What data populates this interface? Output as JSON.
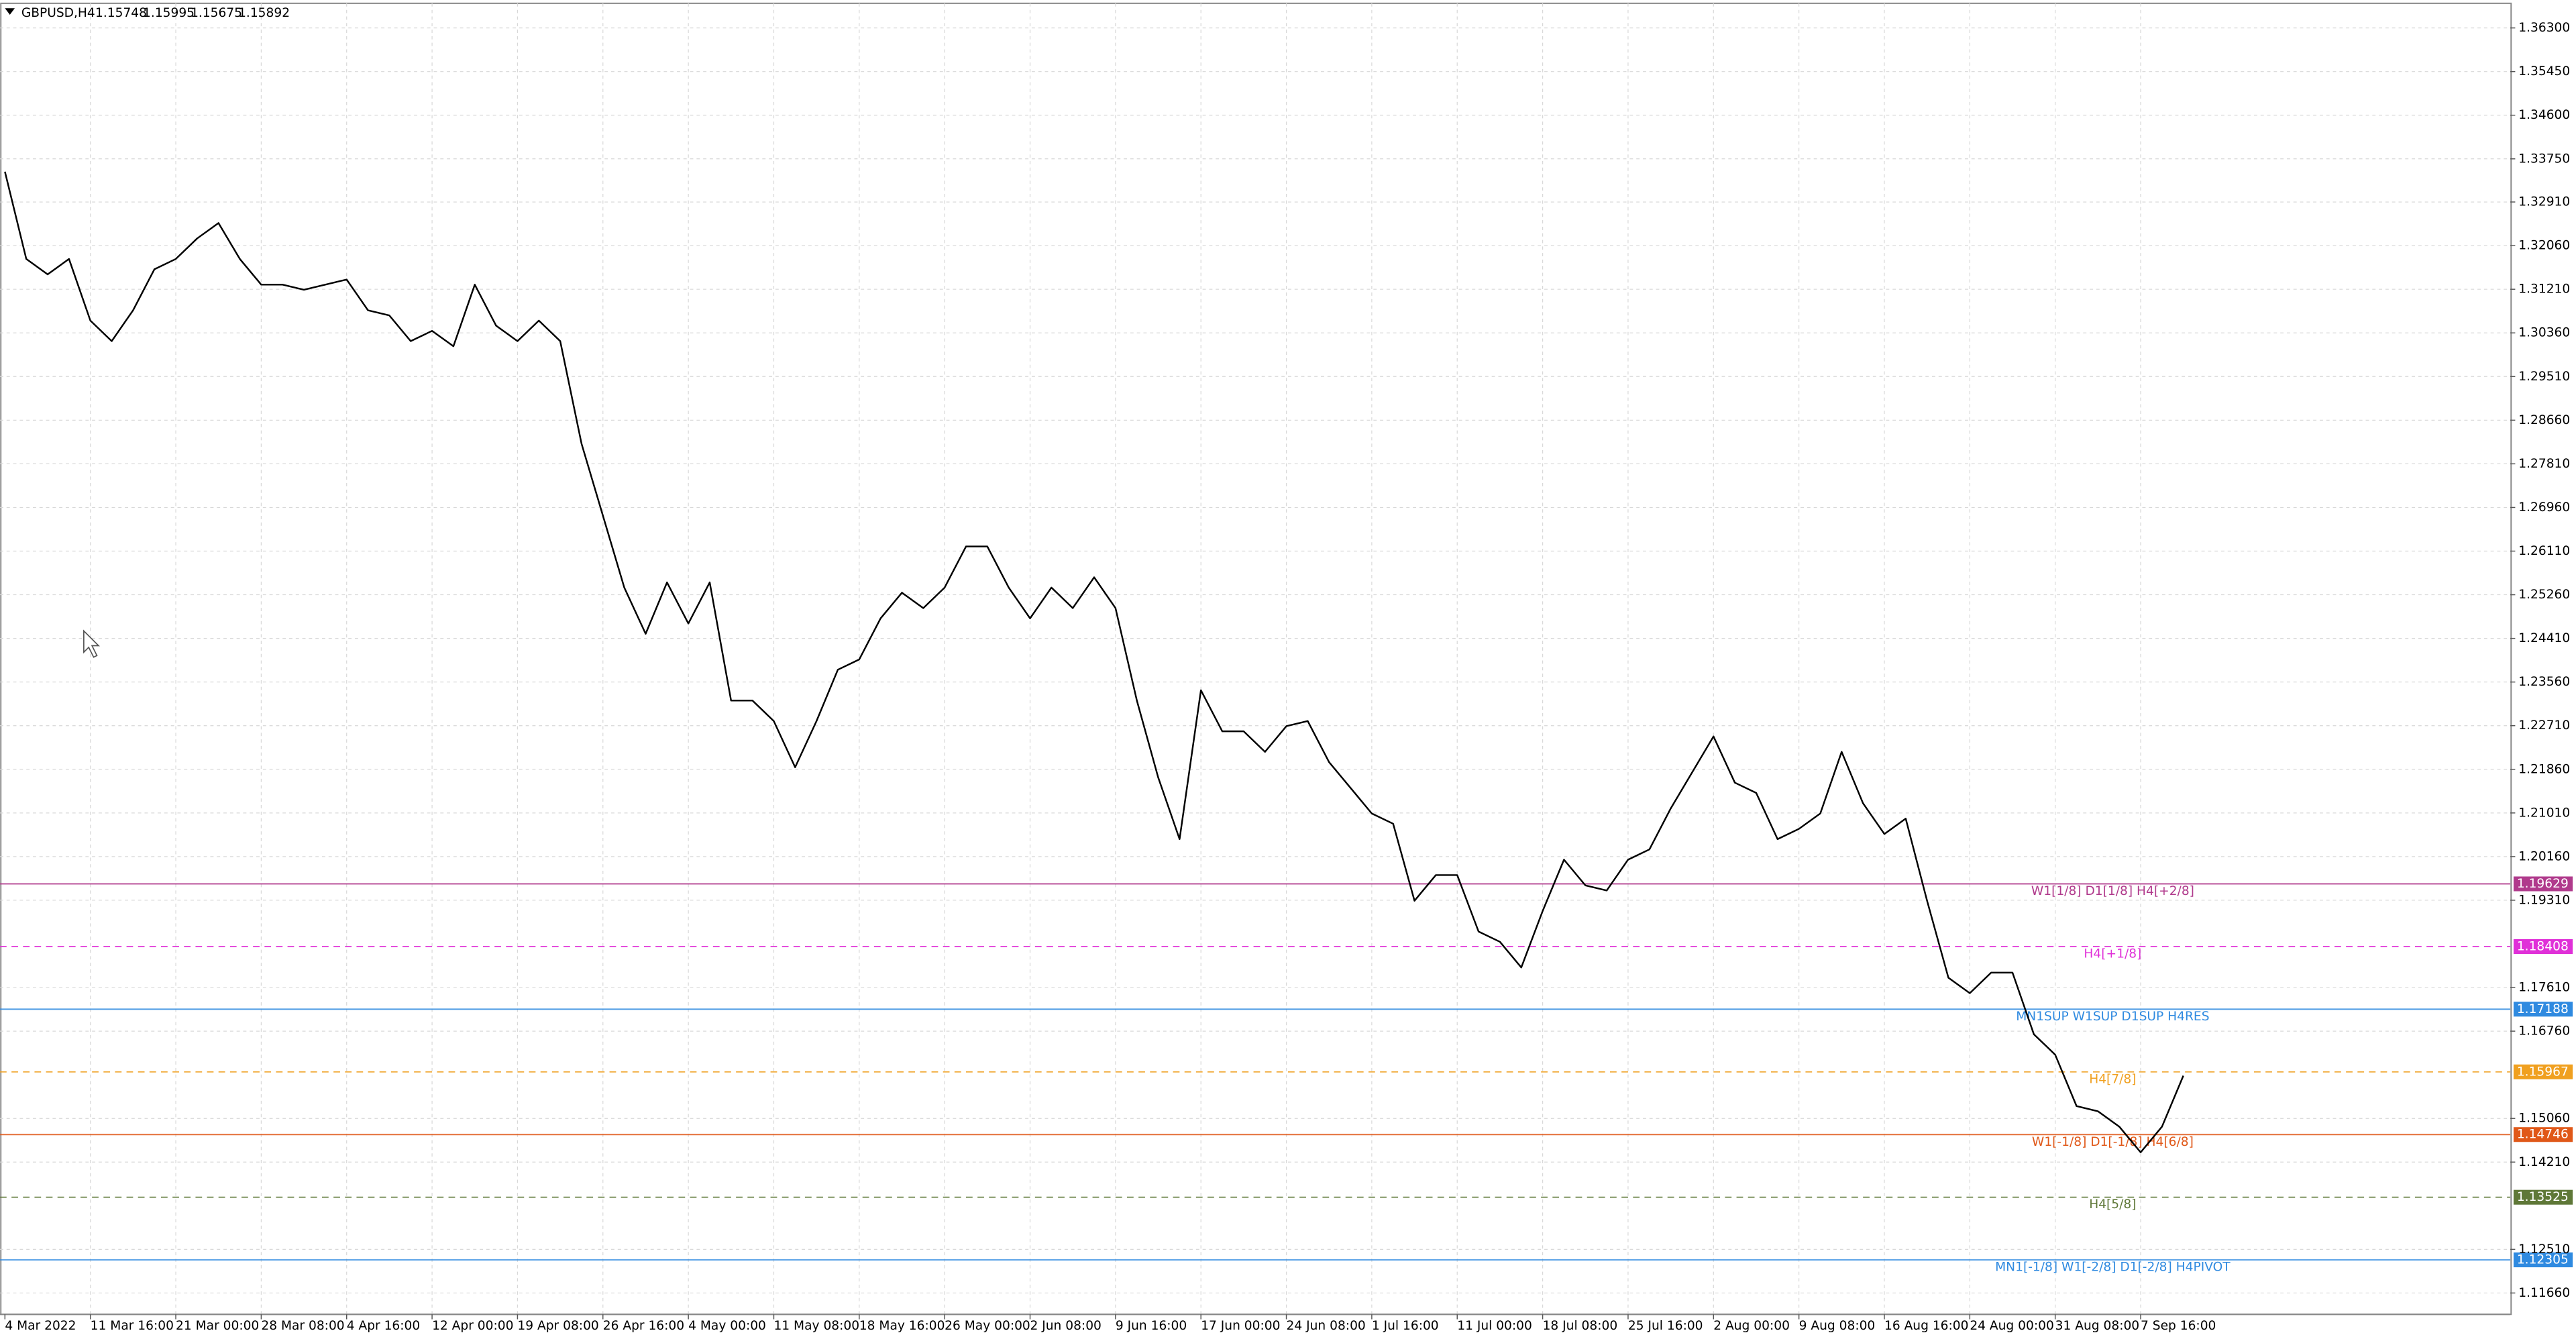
{
  "chart_data": {
    "type": "line",
    "symbol": "GBPUSD,H4",
    "ohlc": [
      1.15748,
      1.15995,
      1.15675,
      1.15892
    ],
    "color": "#000000",
    "grid": true,
    "categories": [
      "4 Mar 2022",
      null,
      null,
      null,
      "11 Mar 16:00",
      null,
      null,
      null,
      "21 Mar 00:00",
      null,
      null,
      null,
      "28 Mar 08:00",
      null,
      null,
      null,
      "4 Apr 16:00",
      null,
      null,
      null,
      "12 Apr 00:00",
      null,
      null,
      null,
      "19 Apr 08:00",
      null,
      null,
      null,
      "26 Apr 16:00",
      null,
      null,
      null,
      "4 May 00:00",
      null,
      null,
      null,
      "11 May 08:00",
      null,
      null,
      null,
      "18 May 16:00",
      null,
      null,
      null,
      "26 May 00:00",
      null,
      null,
      null,
      "2 Jun 08:00",
      null,
      null,
      null,
      "9 Jun 16:00",
      null,
      null,
      null,
      "17 Jun 00:00",
      null,
      null,
      null,
      "24 Jun 08:00",
      null,
      null,
      null,
      "1 Jul 16:00",
      null,
      null,
      null,
      "11 Jul 00:00",
      null,
      null,
      null,
      "18 Jul 08:00",
      null,
      null,
      null,
      "25 Jul 16:00",
      null,
      null,
      null,
      "2 Aug 00:00",
      null,
      null,
      null,
      "9 Aug 08:00",
      null,
      null,
      null,
      "16 Aug 16:00",
      null,
      null,
      null,
      "24 Aug 00:00",
      null,
      null,
      null,
      "31 Aug 08:00",
      null,
      null,
      null,
      "7 Sep 16:00",
      null,
      null
    ],
    "values": [
      1.335,
      1.318,
      1.315,
      1.318,
      1.306,
      1.302,
      1.308,
      1.316,
      1.318,
      1.322,
      1.325,
      1.318,
      1.313,
      1.313,
      1.312,
      1.313,
      1.314,
      1.308,
      1.307,
      1.302,
      1.304,
      1.301,
      1.313,
      1.305,
      1.302,
      1.306,
      1.302,
      1.282,
      1.268,
      1.254,
      1.245,
      1.255,
      1.247,
      1.255,
      1.232,
      1.232,
      1.228,
      1.219,
      1.228,
      1.238,
      1.24,
      1.248,
      1.253,
      1.25,
      1.254,
      1.262,
      1.262,
      1.254,
      1.248,
      1.254,
      1.25,
      1.256,
      1.25,
      1.232,
      1.217,
      1.205,
      1.234,
      1.226,
      1.226,
      1.222,
      1.227,
      1.228,
      1.22,
      1.215,
      1.21,
      1.208,
      1.193,
      1.198,
      1.198,
      1.187,
      1.185,
      1.18,
      1.191,
      1.201,
      1.196,
      1.195,
      1.201,
      1.203,
      1.211,
      1.218,
      1.225,
      1.216,
      1.214,
      1.205,
      1.207,
      1.21,
      1.222,
      1.212,
      1.206,
      1.209,
      1.193,
      1.178,
      1.175,
      1.179,
      1.179,
      1.167,
      1.163,
      1.153,
      1.152,
      1.149,
      1.144,
      1.149,
      1.15892
    ],
    "ylim": [
      1.11244,
      1.36844
    ],
    "yticks": [
      {
        "value": 1.363,
        "label": "1.36300"
      },
      {
        "value": 1.3545,
        "label": "1.35450"
      },
      {
        "value": 1.346,
        "label": "1.34600"
      },
      {
        "value": 1.3375,
        "label": "1.33750"
      },
      {
        "value": 1.3291,
        "label": "1.32910"
      },
      {
        "value": 1.3206,
        "label": "1.32060"
      },
      {
        "value": 1.3121,
        "label": "1.31210"
      },
      {
        "value": 1.3036,
        "label": "1.30360"
      },
      {
        "value": 1.2951,
        "label": "1.29510"
      },
      {
        "value": 1.2866,
        "label": "1.28660"
      },
      {
        "value": 1.2781,
        "label": "1.27810"
      },
      {
        "value": 1.2696,
        "label": "1.26960"
      },
      {
        "value": 1.2611,
        "label": "1.26110"
      },
      {
        "value": 1.2526,
        "label": "1.25260"
      },
      {
        "value": 1.2441,
        "label": "1.24410"
      },
      {
        "value": 1.2356,
        "label": "1.23560"
      },
      {
        "value": 1.2271,
        "label": "1.22710"
      },
      {
        "value": 1.2186,
        "label": "1.21860"
      },
      {
        "value": 1.2101,
        "label": "1.21010"
      },
      {
        "value": 1.2016,
        "label": "1.20160"
      },
      {
        "value": 1.1931,
        "label": "1.19310"
      },
      {
        "value": 1.1761,
        "label": "1.17610"
      },
      {
        "value": 1.1676,
        "label": "1.16760"
      },
      {
        "value": 1.1506,
        "label": "1.15060"
      },
      {
        "value": 1.1421,
        "label": "1.14210"
      },
      {
        "value": 1.1251,
        "label": "1.12510"
      },
      {
        "value": 1.1166,
        "label": "1.11660"
      }
    ],
    "levels": [
      {
        "value": 1.19629,
        "label": "W1[1/8] D1[1/8] H4[+2/8]",
        "color": "#b03a8c",
        "dashed": false
      },
      {
        "value": 1.18408,
        "label": "H4[+1/8]",
        "color": "#e030d8",
        "dashed": true
      },
      {
        "value": 1.17188,
        "label": "MN1SUP W1SUP D1SUP H4RES",
        "color": "#2f8ae0",
        "dashed": false
      },
      {
        "value": 1.15967,
        "label": "H4[7/8]",
        "color": "#f0a020",
        "dashed": true
      },
      {
        "value": 1.14746,
        "label": "W1[-1/8] D1[-1/8] H4[6/8]",
        "color": "#e05818",
        "dashed": false
      },
      {
        "value": 1.13525,
        "label": "H4[5/8]",
        "color": "#5f7838",
        "dashed": true
      },
      {
        "value": 1.12305,
        "label": "MN1[-1/8] W1[-2/8] D1[-2/8] H4PIVOT",
        "color": "#2f8ae0",
        "dashed": false
      }
    ]
  }
}
